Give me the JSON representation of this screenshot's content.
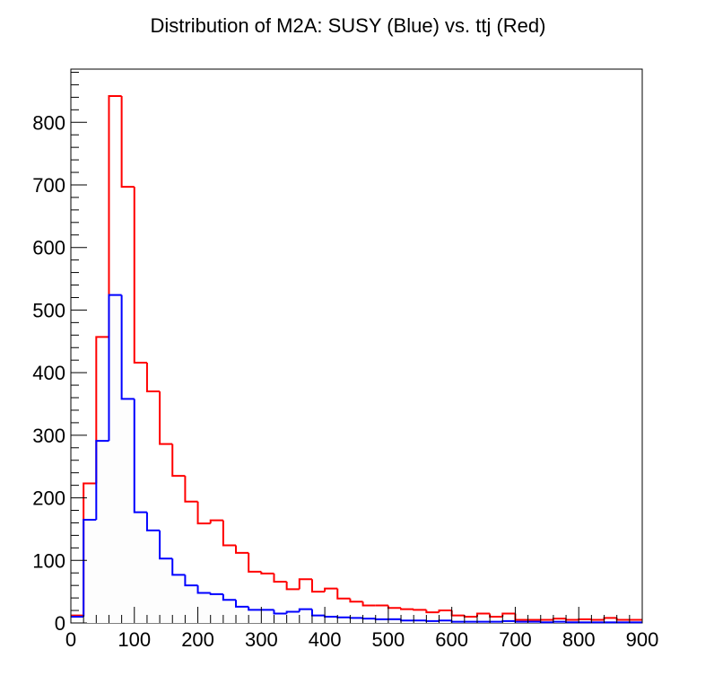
{
  "chart_data": {
    "type": "step-histogram",
    "title": "Distribution of M2A: SUSY (Blue) vs. ttj (Red)",
    "xlabel": "",
    "ylabel": "",
    "xlim": [
      0,
      900
    ],
    "ylim": [
      0,
      885
    ],
    "bin_width": 20,
    "x_ticks": [
      0,
      100,
      200,
      300,
      400,
      500,
      600,
      700,
      800,
      900
    ],
    "y_ticks": [
      0,
      100,
      200,
      300,
      400,
      500,
      600,
      700,
      800
    ],
    "grid": false,
    "legend": "none",
    "series": [
      {
        "color": "#ff0000",
        "values": [
          12,
          223,
          457,
          842,
          697,
          416,
          370,
          286,
          235,
          194,
          159,
          164,
          124,
          112,
          82,
          79,
          66,
          54,
          70,
          50,
          55,
          39,
          34,
          28,
          28,
          24,
          22,
          21,
          17,
          20,
          12,
          10,
          15,
          10,
          15,
          5,
          5,
          5,
          7,
          5,
          6,
          5,
          8,
          5,
          5
        ]
      },
      {
        "color": "#0000ff",
        "values": [
          10,
          165,
          291,
          524,
          358,
          177,
          148,
          103,
          77,
          60,
          48,
          46,
          37,
          26,
          21,
          21,
          15,
          18,
          22,
          12,
          10,
          9,
          8,
          7,
          6,
          6,
          4,
          4,
          3,
          4,
          2,
          2,
          2,
          2,
          3,
          2,
          2,
          1,
          2,
          1,
          1,
          1,
          1,
          1,
          1
        ]
      }
    ]
  }
}
